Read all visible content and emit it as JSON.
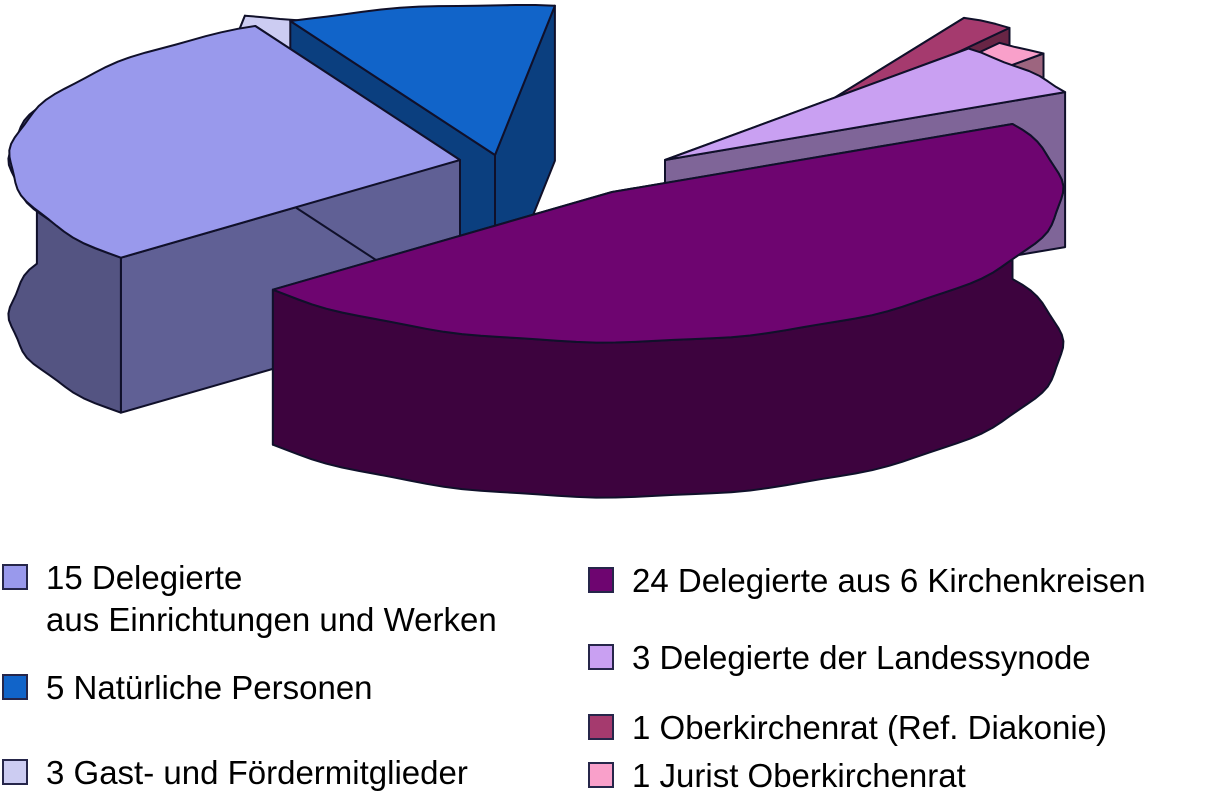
{
  "chart_data": {
    "type": "pie",
    "projection": "3d-exploded",
    "title": "",
    "legend_position": "bottom",
    "legend_columns": 2,
    "slices": [
      {
        "id": "kirchenkreise",
        "label": "24 Delegierte aus 6 Kirchenkreisen",
        "value": 24,
        "color": "#6E0570"
      },
      {
        "id": "einrichtungen",
        "label": "15 Delegierte aus Einrichtungen und Werken",
        "value": 15,
        "color": "#9999EC"
      },
      {
        "id": "natuerliche",
        "label": "5 Natürliche Personen",
        "value": 5,
        "color": "#1164C9"
      },
      {
        "id": "gast",
        "label": "3 Gast- und Fördermitglieder",
        "value": 3,
        "color": "#CCCCF2"
      },
      {
        "id": "landessynode",
        "label": "3 Delegierte der Landessynode",
        "value": 3,
        "color": "#C9A0F2"
      },
      {
        "id": "oberkirchenrat",
        "label": "1 Oberkirchenrat (Ref. Diakonie)",
        "value": 1,
        "color": "#A53A6E"
      },
      {
        "id": "jurist",
        "label": "1 Jurist Oberkirchenrat",
        "value": 1,
        "color": "#F9A0CA"
      }
    ]
  },
  "legend": {
    "left": [
      {
        "slice": "einrichtungen",
        "line1": "15 Delegierte",
        "line2": "aus Einrichtungen und Werken"
      },
      {
        "slice": "natuerliche",
        "line1": "5 Natürliche Personen",
        "line2": ""
      },
      {
        "slice": "gast",
        "line1": "3 Gast- und Fördermitglieder",
        "line2": ""
      }
    ],
    "right": [
      {
        "slice": "kirchenkreise",
        "line1": "24 Delegierte aus 6 Kirchenkreisen",
        "line2": ""
      },
      {
        "slice": "landessynode",
        "line1": "3 Delegierte der Landessynode",
        "line2": ""
      },
      {
        "slice": "oberkirchenrat",
        "line1": "1 Oberkirchenrat (Ref. Diakonie)",
        "line2": ""
      },
      {
        "slice": "jurist",
        "line1": "1 Jurist Oberkirchenrat",
        "line2": ""
      }
    ]
  }
}
